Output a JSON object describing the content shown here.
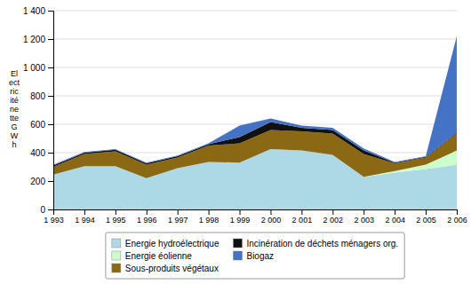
{
  "chart_data": {
    "type": "area",
    "stacked": true,
    "grid": true,
    "legend": "bottom",
    "y_label": "El\nect\nric\nité\nne\ntte\nG\nW\nh",
    "x": [
      1993,
      1994,
      1995,
      1996,
      1997,
      1998,
      1999,
      2000,
      2001,
      2002,
      2003,
      2004,
      2005,
      2006
    ],
    "xlim": [
      1993,
      2006
    ],
    "xticks": [
      {
        "value": 1993,
        "label": "1 993"
      },
      {
        "value": 1994,
        "label": "1 994"
      },
      {
        "value": 1995,
        "label": "1 995"
      },
      {
        "value": 1996,
        "label": "1 996"
      },
      {
        "value": 1997,
        "label": "1 997"
      },
      {
        "value": 1998,
        "label": "1 998"
      },
      {
        "value": 1999,
        "label": "1 999"
      },
      {
        "value": 2000,
        "label": "2 000"
      },
      {
        "value": 2001,
        "label": "2 001"
      },
      {
        "value": 2002,
        "label": "2 002"
      },
      {
        "value": 2003,
        "label": "2 003"
      },
      {
        "value": 2004,
        "label": "2 004"
      },
      {
        "value": 2005,
        "label": "2 005"
      },
      {
        "value": 2006,
        "label": "2 006"
      }
    ],
    "ylim": [
      0,
      1400
    ],
    "yticks": [
      0,
      200,
      400,
      600,
      800,
      {
        "value": 1000,
        "label": "1 000"
      },
      {
        "value": 1200,
        "label": "1 200"
      },
      {
        "value": 1400,
        "label": "1 400"
      }
    ],
    "series": [
      {
        "name": "Energie hydroélectrique",
        "color": "#add8e6",
        "values": [
          245,
          305,
          305,
          220,
          290,
          335,
          330,
          425,
          415,
          385,
          230,
          260,
          285,
          315
        ]
      },
      {
        "name": "Energie éolienne",
        "color": "#ccffcc",
        "values": [
          0,
          0,
          0,
          0,
          0,
          0,
          0,
          0,
          0,
          0,
          0,
          10,
          30,
          100
        ]
      },
      {
        "name": "Sous-produits végétaux",
        "color": "#8B6914",
        "values": [
          55,
          85,
          105,
          95,
          75,
          115,
          135,
          135,
          135,
          150,
          160,
          55,
          50,
          120
        ]
      },
      {
        "name": "Incinération de déchets ménagers org.",
        "color": "#111111",
        "values": [
          10,
          10,
          10,
          10,
          10,
          10,
          45,
          55,
          25,
          25,
          25,
          5,
          5,
          5
        ]
      },
      {
        "name": "Biogaz",
        "color": "#4472c4",
        "values": [
          5,
          5,
          5,
          5,
          5,
          5,
          80,
          25,
          15,
          15,
          15,
          5,
          5,
          680
        ]
      }
    ]
  }
}
